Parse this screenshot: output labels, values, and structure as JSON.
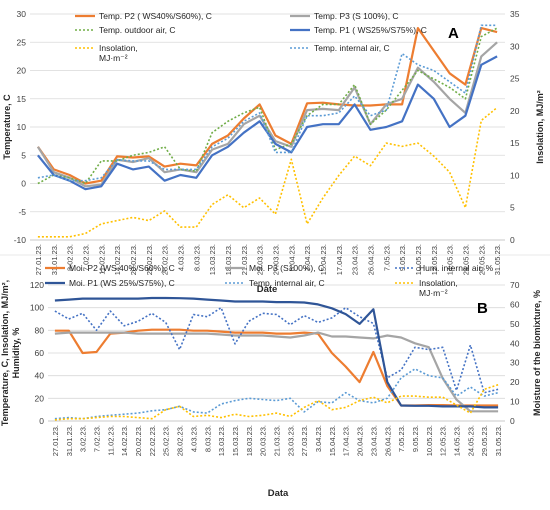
{
  "chart_data": [
    {
      "type": "line",
      "panel_label": "A",
      "xlabel": "Date",
      "ylabel": "Temperature, C",
      "y2label": "Insolation, MJ/m²",
      "ylim": [
        -10,
        30
      ],
      "y2lim": [
        0,
        35
      ],
      "yticks": [
        -10,
        -5,
        0,
        5,
        10,
        15,
        20,
        25,
        30
      ],
      "y2ticks": [
        0,
        5,
        10,
        15,
        20,
        25,
        30,
        35
      ],
      "legend_position": "top",
      "grid": "horizontal",
      "x_labels": [
        "27.01.23.",
        "31.01.23.",
        "3.02.23.",
        "7.02.23.",
        "11.02.23.",
        "14.02.23.",
        "20.02.23.",
        "25.02.23.",
        "28.02.23.",
        "4.03.23.",
        "8.03.23.",
        "13.03.23.",
        "18.03.23.",
        "21.03.23.",
        "23.03.23.",
        "27.03.23.",
        "3.04.23.",
        "7.04.23.",
        "15.04.23.",
        "17.04.23.",
        "23.04.23.",
        "26.04.23.",
        "7.05.23.",
        "9.05.23.",
        "10.05.23.",
        "12.05.23.",
        "14.05.23.",
        "24.05.23.",
        "29.05.23.",
        "31.05.23."
      ],
      "series": [
        {
          "name": "Temp. P2 ( WS40%/S60%), C",
          "color": "#ED7D31",
          "style": "solid",
          "axis": "left",
          "values": [
            6.5,
            2.5,
            1.5,
            0.0,
            0.5,
            4.8,
            4.6,
            4.8,
            3.0,
            3.5,
            3.2,
            7.0,
            8.5,
            11.5,
            14.0,
            8.5,
            7.0,
            14.2,
            14.3,
            14.0,
            13.8,
            13.8,
            14.0,
            14.0,
            27.5,
            23.5,
            19.5,
            17.5,
            27.5,
            26.8
          ]
        },
        {
          "name": "Temp. P3 (S 100%), C",
          "color": "#A5A5A5",
          "style": "solid",
          "axis": "left",
          "values": [
            6.5,
            2.0,
            1.0,
            -0.5,
            -0.2,
            4.2,
            3.8,
            4.5,
            2.0,
            2.5,
            2.0,
            6.0,
            7.0,
            10.5,
            12.0,
            7.5,
            6.5,
            13.0,
            13.2,
            13.0,
            17.0,
            10.5,
            14.0,
            15.0,
            20.5,
            18.0,
            15.0,
            12.5,
            22.5,
            25.0
          ]
        },
        {
          "name": "Temp. outdoor air, C",
          "color": "#70AD47",
          "style": "dotted",
          "axis": "left",
          "values": [
            0.0,
            1.5,
            1.0,
            0.0,
            4.0,
            4.0,
            5.0,
            5.5,
            6.5,
            2.5,
            2.2,
            9.0,
            11.0,
            12.5,
            13.5,
            6.0,
            7.0,
            12.0,
            14.0,
            14.0,
            17.5,
            10.5,
            13.0,
            16.5,
            20.0,
            18.5,
            17.0,
            15.0,
            26.0,
            27.5
          ]
        },
        {
          "name": "Temp. P1 ( WS25%/S75%), C",
          "color": "#4472C4",
          "style": "solid",
          "axis": "left",
          "values": [
            5.0,
            1.5,
            0.5,
            -1.0,
            -0.5,
            3.5,
            2.5,
            3.0,
            0.5,
            1.5,
            1.0,
            5.0,
            6.5,
            9.0,
            11.0,
            7.0,
            5.5,
            10.0,
            10.5,
            10.5,
            14.0,
            9.5,
            10.0,
            11.0,
            17.5,
            15.0,
            10.0,
            12.0,
            21.0,
            22.5
          ]
        },
        {
          "name": "Insolation,\nMJ·m⁻²",
          "color": "#FFC000",
          "style": "dotted",
          "axis": "right",
          "values": [
            0.5,
            0.5,
            0.5,
            1.0,
            2.5,
            3.0,
            3.5,
            3.0,
            4.5,
            2.0,
            2.0,
            5.5,
            7.0,
            5.0,
            6.5,
            4.0,
            12.5,
            2.5,
            6.5,
            10.0,
            13.0,
            11.5,
            15.0,
            14.5,
            15.0,
            13.0,
            10.5,
            5.0,
            18.5,
            20.5
          ]
        },
        {
          "name": "Temp. internal air, C",
          "color": "#5B9BD5",
          "style": "dotted",
          "axis": "left",
          "values": [
            1.0,
            1.5,
            0.5,
            0.5,
            1.0,
            4.2,
            4.0,
            4.0,
            2.5,
            2.5,
            2.5,
            6.5,
            8.0,
            11.0,
            12.5,
            5.5,
            5.5,
            12.0,
            12.0,
            12.5,
            15.5,
            12.0,
            13.0,
            23.0,
            21.0,
            20.0,
            18.0,
            16.0,
            28.0,
            28.0
          ]
        }
      ]
    },
    {
      "type": "line",
      "panel_label": "B",
      "xlabel": "Data",
      "ylabel": "Temperature, C, Insolation, MJ/m²,\nHumidity, %",
      "y2label": "Moisture of the biomixture, %",
      "ylim": [
        0,
        120
      ],
      "y2lim": [
        0,
        70
      ],
      "yticks": [
        0,
        20,
        40,
        60,
        80,
        100,
        120
      ],
      "y2ticks": [
        0,
        10,
        20,
        30,
        40,
        50,
        60,
        70
      ],
      "legend_position": "top",
      "grid": "horizontal",
      "x_labels": [
        "27.01.23.",
        "31.01.23.",
        "3.02.23.",
        "7.02.23.",
        "11.02.23.",
        "14.02.23.",
        "20.02.23.",
        "22.02.23.",
        "25.02.23.",
        "28.02.23.",
        "4.03.23.",
        "8.03.23.",
        "13.03.23.",
        "15.03.23.",
        "18.03.23.",
        "20.03.23.",
        "21.03.23.",
        "23.03.23.",
        "27.03.23.",
        "3.04.23.",
        "15.04.23.",
        "17.04.23.",
        "20.04.23.",
        "23.04.23.",
        "26.04.23.",
        "7.05.23.",
        "9.05.23.",
        "10.05.23.",
        "12.05.23.",
        "14.05.23.",
        "24.05.23.",
        "29.05.23.",
        "31.05.23."
      ],
      "series": [
        {
          "name": "Moi. P2 (WS 40%/S60%), C",
          "color": "#ED7D31",
          "style": "solid",
          "axis": "right",
          "values": [
            46.5,
            46.5,
            35,
            35.5,
            45,
            45.5,
            46.5,
            47,
            47,
            47,
            46.5,
            46.5,
            46,
            45.5,
            45.5,
            45.5,
            45,
            45,
            45.5,
            45,
            35,
            28,
            20,
            35.5,
            18,
            8,
            8,
            8.2,
            8.2,
            8,
            8,
            8,
            8
          ]
        },
        {
          "name": "Moi. P3 (S100%), C",
          "color": "#A5A5A5",
          "style": "solid",
          "axis": "right",
          "values": [
            45,
            45.5,
            45.5,
            45.5,
            45.5,
            45.5,
            45,
            45,
            45,
            45,
            45,
            45,
            44.5,
            44,
            44,
            44,
            43.5,
            43,
            44,
            45.5,
            43.5,
            43.5,
            43,
            42.5,
            44,
            43,
            40,
            38,
            22,
            11,
            5,
            5,
            5
          ]
        },
        {
          "name": "Hum. internal air, %",
          "color": "#4472C4",
          "style": "dotted",
          "axis": "left",
          "values": [
            97,
            90,
            95,
            80,
            97,
            84,
            88,
            95,
            87,
            63,
            94,
            92,
            100,
            68,
            88,
            95,
            94,
            85,
            93,
            87,
            91,
            100,
            92,
            86,
            38,
            45,
            65,
            63,
            65,
            27,
            67,
            25,
            28
          ]
        },
        {
          "name": "Moi. P1 (WS 25%/S75%), C",
          "color": "#2F5597",
          "style": "solid",
          "axis": "right",
          "values": [
            62,
            62.5,
            63,
            63,
            63,
            63,
            63,
            63.3,
            63.3,
            63.2,
            63,
            62.5,
            62,
            61.5,
            61.5,
            61.5,
            61.2,
            61.2,
            61,
            60,
            58,
            55,
            50,
            57.5,
            20,
            8,
            7.8,
            7.8,
            7.5,
            7.5,
            7.5,
            7,
            7
          ]
        },
        {
          "name": "Temp. internal air, C",
          "color": "#5B9BD5",
          "style": "dotted",
          "axis": "left",
          "values": [
            2,
            3,
            2,
            4,
            5,
            6,
            7,
            9,
            10,
            13,
            8,
            7,
            15,
            18,
            20,
            19,
            18,
            20,
            8,
            17,
            16,
            25,
            18,
            16,
            20,
            38,
            46,
            40,
            38,
            22,
            30,
            22,
            25
          ]
        },
        {
          "name": "Insolation,\nMJ·m⁻²",
          "color": "#FFC000",
          "style": "dotted",
          "axis": "left",
          "values": [
            1,
            2,
            2,
            3,
            4,
            4,
            3,
            2,
            10,
            13,
            4,
            5,
            3,
            6,
            4,
            5,
            7,
            4,
            12,
            18,
            10,
            12,
            18,
            21,
            16,
            22,
            22,
            21,
            21,
            14,
            7,
            28,
            32
          ]
        }
      ]
    }
  ]
}
